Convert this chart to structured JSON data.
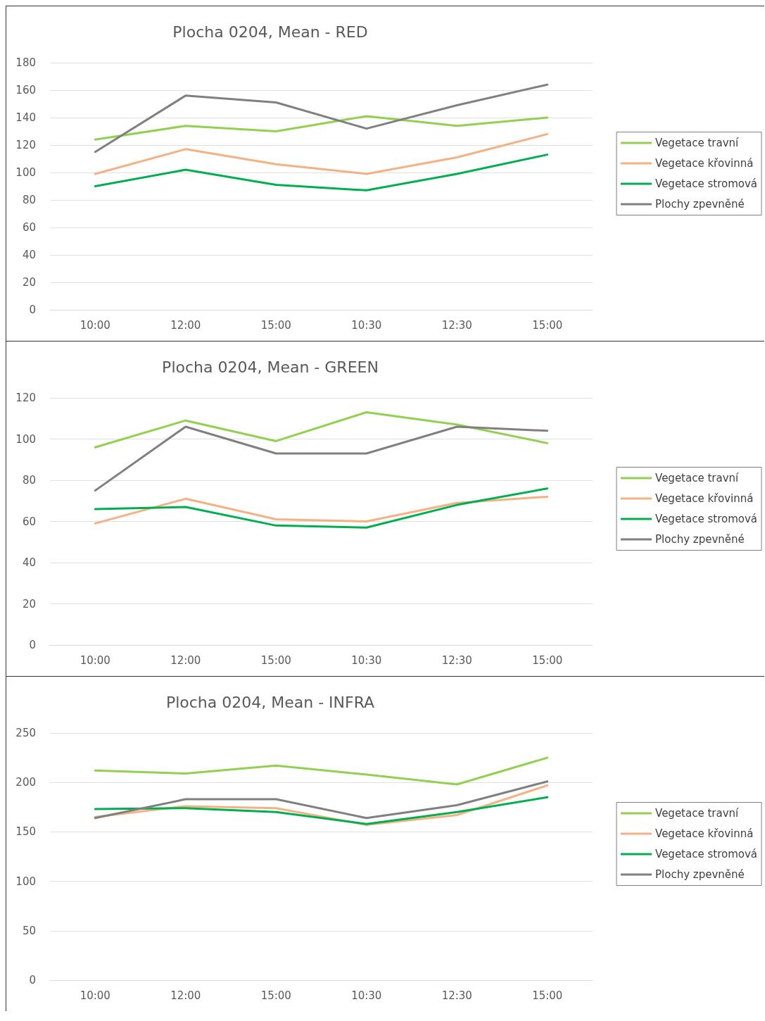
{
  "chart_data": [
    {
      "type": "line",
      "title": "Plocha 0204, Mean - RED",
      "categories": [
        "10:00",
        "12:00",
        "15:00",
        "10:30",
        "12:30",
        "15:00"
      ],
      "ylim": [
        0,
        180
      ],
      "yticks": [
        0,
        20,
        40,
        60,
        80,
        100,
        120,
        140,
        160,
        180
      ],
      "grid": "y",
      "legend": "right",
      "series": [
        {
          "name": "Vegetace travní",
          "color": "#92d050",
          "values": [
            124,
            134,
            130,
            141,
            134,
            140
          ]
        },
        {
          "name": "Vegetace křovinná",
          "color": "#f4b183",
          "values": [
            99,
            117,
            106,
            99,
            111,
            128
          ]
        },
        {
          "name": "Vegetace stromová",
          "color": "#00b050",
          "values": [
            90,
            102,
            91,
            87,
            99,
            113
          ]
        },
        {
          "name": "Plochy zpevněné",
          "color": "#808080",
          "values": [
            115,
            156,
            151,
            132,
            149,
            164
          ]
        }
      ]
    },
    {
      "type": "line",
      "title": "Plocha 0204, Mean - GREEN",
      "categories": [
        "10:00",
        "12:00",
        "15:00",
        "10:30",
        "12:30",
        "15:00"
      ],
      "ylim": [
        0,
        120
      ],
      "yticks": [
        0,
        20,
        40,
        60,
        80,
        100,
        120
      ],
      "grid": "y",
      "legend": "right",
      "series": [
        {
          "name": "Vegetace travní",
          "color": "#92d050",
          "values": [
            96,
            109,
            99,
            113,
            107,
            98
          ]
        },
        {
          "name": "Vegetace křovinná",
          "color": "#f4b183",
          "values": [
            59,
            71,
            61,
            60,
            69,
            72
          ]
        },
        {
          "name": "Vegetace stromová",
          "color": "#00b050",
          "values": [
            66,
            67,
            58,
            57,
            68,
            76
          ]
        },
        {
          "name": "Plochy zpevněné",
          "color": "#808080",
          "values": [
            75,
            106,
            93,
            93,
            106,
            104
          ]
        }
      ]
    },
    {
      "type": "line",
      "title": "Plocha 0204, Mean - INFRA",
      "categories": [
        "10:00",
        "12:00",
        "15:00",
        "10:30",
        "12:30",
        "15:00"
      ],
      "ylim": [
        0,
        250
      ],
      "yticks": [
        0,
        50,
        100,
        150,
        200,
        250
      ],
      "grid": "y",
      "legend": "right",
      "series": [
        {
          "name": "Vegetace travní",
          "color": "#92d050",
          "values": [
            212,
            209,
            217,
            208,
            198,
            225
          ]
        },
        {
          "name": "Vegetace křovinná",
          "color": "#f4b183",
          "values": [
            165,
            176,
            174,
            157,
            167,
            197
          ]
        },
        {
          "name": "Vegetace stromová",
          "color": "#00b050",
          "values": [
            173,
            174,
            170,
            158,
            170,
            185
          ]
        },
        {
          "name": "Plochy zpevněné",
          "color": "#808080",
          "values": [
            164,
            183,
            183,
            164,
            177,
            201
          ]
        }
      ]
    }
  ]
}
